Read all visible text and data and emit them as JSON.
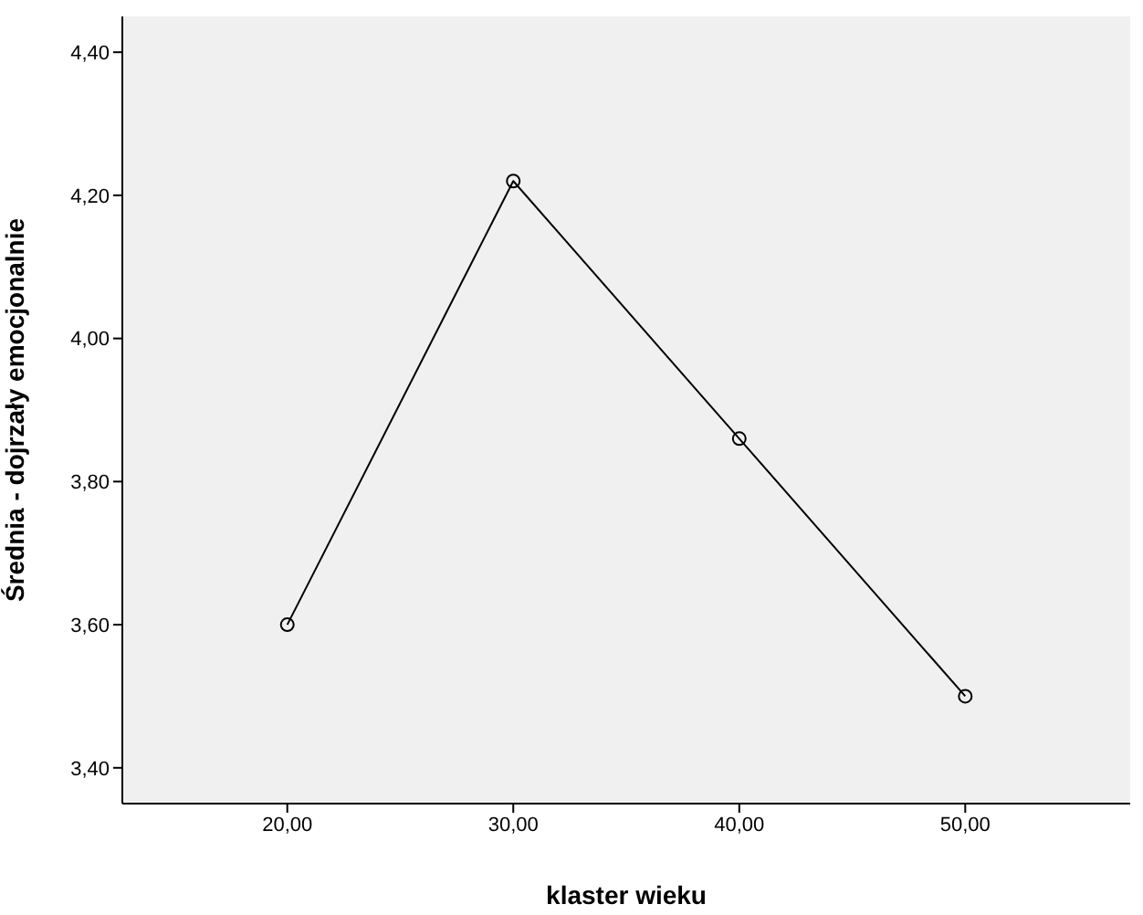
{
  "chart_data": {
    "type": "line",
    "xlabel": "klaster wieku",
    "ylabel": "Średnia - dojrzały emocjonalnie",
    "x": [
      20,
      30,
      40,
      50
    ],
    "series": [
      {
        "color": "#000000",
        "values": [
          3.6,
          4.22,
          3.86,
          3.5
        ]
      }
    ],
    "xlim": [
      12.7,
      57.3
    ],
    "xticks": [
      {
        "value": 20,
        "label": "20,00"
      },
      {
        "value": 30,
        "label": "30,00"
      },
      {
        "value": 40,
        "label": "40,00"
      },
      {
        "value": 50,
        "label": "50,00"
      }
    ],
    "ylim": [
      3.35,
      4.45
    ],
    "yticks": [
      {
        "value": 3.4,
        "label": "3,40"
      },
      {
        "value": 3.6,
        "label": "3,60"
      },
      {
        "value": 3.8,
        "label": "3,80"
      },
      {
        "value": 4.0,
        "label": "4,00"
      },
      {
        "value": 4.2,
        "label": "4,20"
      },
      {
        "value": 4.4,
        "label": "4,40"
      }
    ],
    "grid": false,
    "legend": false,
    "marker": "circle",
    "line_style": "solid"
  }
}
